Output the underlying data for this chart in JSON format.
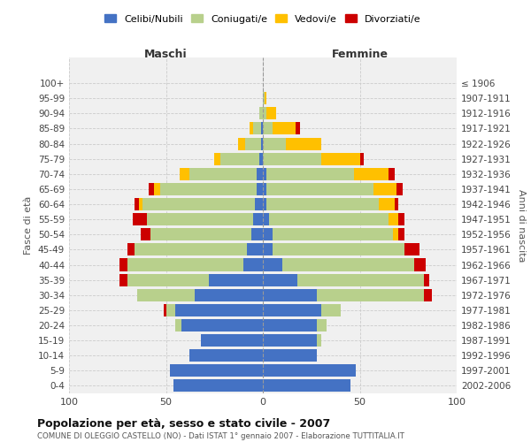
{
  "age_groups": [
    "0-4",
    "5-9",
    "10-14",
    "15-19",
    "20-24",
    "25-29",
    "30-34",
    "35-39",
    "40-44",
    "45-49",
    "50-54",
    "55-59",
    "60-64",
    "65-69",
    "70-74",
    "75-79",
    "80-84",
    "85-89",
    "90-94",
    "95-99",
    "100+"
  ],
  "birth_years": [
    "2002-2006",
    "1997-2001",
    "1992-1996",
    "1987-1991",
    "1982-1986",
    "1977-1981",
    "1972-1976",
    "1967-1971",
    "1962-1966",
    "1957-1961",
    "1952-1956",
    "1947-1951",
    "1942-1946",
    "1937-1941",
    "1932-1936",
    "1927-1931",
    "1922-1926",
    "1917-1921",
    "1912-1916",
    "1907-1911",
    "≤ 1906"
  ],
  "maschi": {
    "celibi": [
      46,
      48,
      38,
      32,
      42,
      45,
      35,
      28,
      10,
      8,
      6,
      5,
      4,
      3,
      3,
      2,
      1,
      1,
      0,
      0,
      0
    ],
    "coniugati": [
      0,
      0,
      0,
      0,
      3,
      5,
      30,
      42,
      60,
      58,
      52,
      55,
      58,
      50,
      35,
      20,
      8,
      4,
      2,
      0,
      0
    ],
    "vedovi": [
      0,
      0,
      0,
      0,
      0,
      0,
      0,
      0,
      0,
      0,
      0,
      0,
      2,
      3,
      5,
      3,
      4,
      2,
      0,
      0,
      0
    ],
    "divorziati": [
      0,
      0,
      0,
      0,
      0,
      1,
      0,
      4,
      4,
      4,
      5,
      7,
      2,
      3,
      0,
      0,
      0,
      0,
      0,
      0,
      0
    ]
  },
  "femmine": {
    "nubili": [
      45,
      48,
      28,
      28,
      28,
      30,
      28,
      18,
      10,
      5,
      5,
      3,
      2,
      2,
      2,
      0,
      0,
      0,
      0,
      0,
      0
    ],
    "coniugate": [
      0,
      0,
      0,
      2,
      5,
      10,
      55,
      65,
      68,
      68,
      62,
      62,
      58,
      55,
      45,
      30,
      12,
      5,
      2,
      1,
      0
    ],
    "vedove": [
      0,
      0,
      0,
      0,
      0,
      0,
      0,
      0,
      0,
      0,
      3,
      5,
      8,
      12,
      18,
      20,
      18,
      12,
      5,
      1,
      0
    ],
    "divorziate": [
      0,
      0,
      0,
      0,
      0,
      0,
      4,
      3,
      6,
      8,
      3,
      3,
      2,
      3,
      3,
      2,
      0,
      2,
      0,
      0,
      0
    ]
  },
  "colors": {
    "celibi": "#4472c4",
    "coniugati": "#b8d08c",
    "vedovi": "#ffc000",
    "divorziati": "#cc0000"
  },
  "legend_labels": [
    "Celibi/Nubili",
    "Coniugati/e",
    "Vedovi/e",
    "Divorziati/e"
  ],
  "title": "Popolazione per età, sesso e stato civile - 2007",
  "subtitle": "COMUNE DI OLEGGIO CASTELLO (NO) - Dati ISTAT 1° gennaio 2007 - Elaborazione TUTTITALIA.IT",
  "xlabel_left": "Maschi",
  "xlabel_right": "Femmine",
  "ylabel_left": "Fasce di età",
  "ylabel_right": "Anni di nascita",
  "xlim": 100,
  "background_color": "#ffffff",
  "plot_bg": "#f0f0f0",
  "grid_color": "#cccccc"
}
